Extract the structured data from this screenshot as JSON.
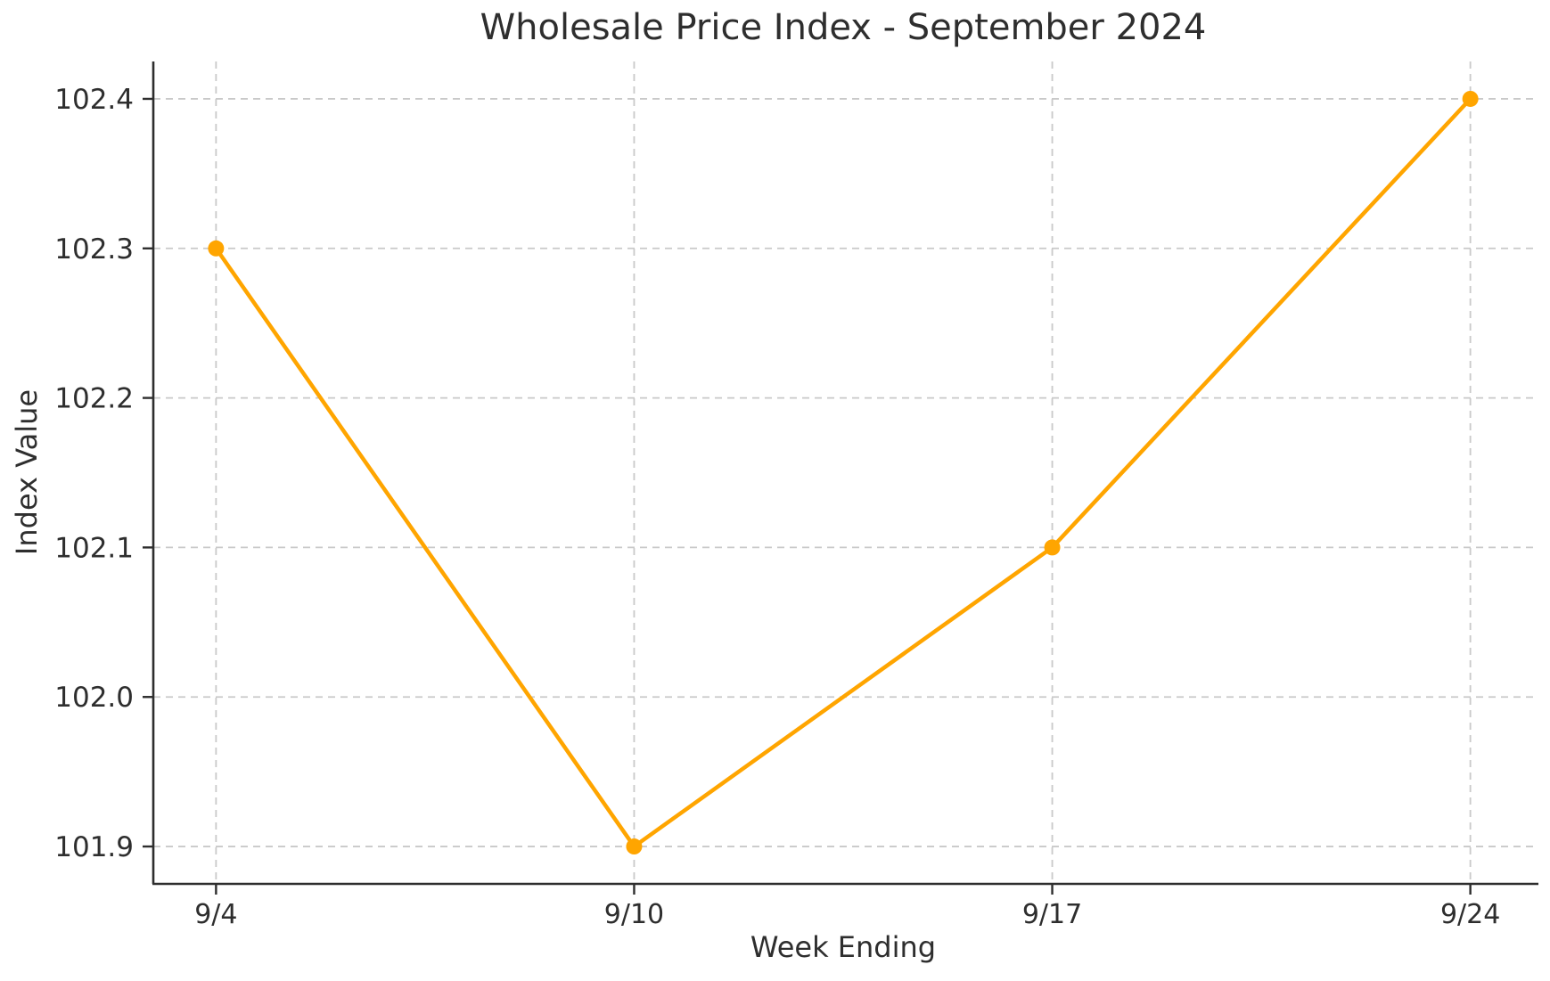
{
  "chart_data": {
    "type": "line",
    "title": "Wholesale Price Index - September 2024",
    "xlabel": "Week Ending",
    "ylabel": "Index Value",
    "categories": [
      "9/4",
      "9/10",
      "9/17",
      "9/24"
    ],
    "values": [
      102.3,
      101.9,
      102.1,
      102.4
    ],
    "yticks": [
      101.9,
      102.0,
      102.1,
      102.2,
      102.3,
      102.4
    ],
    "ytick_labels": [
      "101.9",
      "102.0",
      "102.1",
      "102.2",
      "102.3",
      "102.4"
    ],
    "ylim": [
      101.875,
      102.425
    ],
    "grid": true,
    "grid_style": "dashed",
    "legend": "none",
    "marker": "circle",
    "line_color": "#FFA500",
    "colors": {
      "grid": "#c9c9c9",
      "axis": "#2e2e2e",
      "text": "#2e2e2e",
      "background": "#ffffff"
    }
  }
}
